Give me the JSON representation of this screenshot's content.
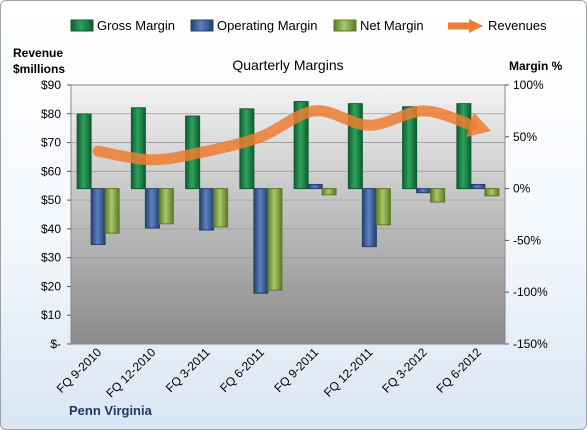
{
  "chart_data": {
    "type": "bar",
    "title": "Quarterly Margins",
    "categories": [
      "FQ 9-2010",
      "FQ 12-2010",
      "FQ 3-2011",
      "FQ 6-2011",
      "FQ 9-2011",
      "FQ 12-2011",
      "FQ 3-2012",
      "FQ 6-2012"
    ],
    "series": [
      {
        "name": "Gross Margin",
        "axis": "right",
        "type": "bar",
        "color": "#1f8a4c",
        "values": [
          72,
          78,
          70,
          77,
          84,
          82,
          79,
          82
        ]
      },
      {
        "name": "Operating Margin",
        "axis": "right",
        "type": "bar",
        "color": "#3e64a3",
        "values": [
          -54,
          -38,
          -40,
          -101,
          4,
          -56,
          -4,
          4
        ]
      },
      {
        "name": "Net Margin",
        "axis": "right",
        "type": "bar",
        "color": "#8cb04a",
        "values": [
          -43,
          -34,
          -37,
          -98,
          -6,
          -35,
          -13,
          -7
        ]
      },
      {
        "name": "Revenues",
        "axis": "left",
        "type": "line",
        "color": "#ed7d31",
        "values": [
          67,
          64,
          67,
          72,
          81,
          76,
          81,
          76
        ]
      }
    ],
    "left_axis": {
      "label": "Revenue $millions",
      "min": 0,
      "max": 90,
      "step": 10,
      "tick_labels": [
        "$-",
        "$10",
        "$20",
        "$30",
        "$40",
        "$50",
        "$60",
        "$70",
        "$80",
        "$90"
      ]
    },
    "right_axis": {
      "label": "Margin %",
      "min": -150,
      "max": 100,
      "step": 50,
      "tick_labels": [
        "-150%",
        "-100%",
        "-50%",
        "0%",
        "50%",
        "100%"
      ]
    },
    "legend_position": "top",
    "grid": true,
    "credit": "Penn Virginia"
  }
}
